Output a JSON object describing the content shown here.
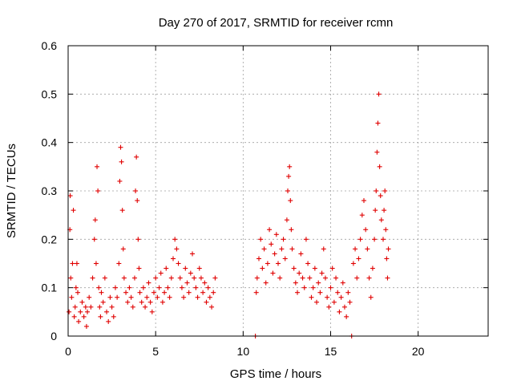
{
  "chart_data": {
    "type": "scatter",
    "title": "Day 270 of 2017, SRMTID for receiver rcmn",
    "xlabel": "GPS time / hours",
    "ylabel": "SRMTID / TECUs",
    "xlim": [
      0,
      24
    ],
    "ylim": [
      0,
      0.6
    ],
    "xticks": [
      0,
      5,
      10,
      15,
      20
    ],
    "yticks": [
      0,
      0.1,
      0.2,
      0.3,
      0.4,
      0.5,
      0.6
    ],
    "x_tick_labels": [
      "0",
      "5",
      "10",
      "15",
      "20"
    ],
    "y_tick_labels": [
      "0",
      "0.1",
      "0.2",
      "0.3",
      "0.4",
      "0.5",
      "0.6"
    ],
    "grid": true,
    "marker": "plus",
    "color": "#e00000",
    "series": [
      {
        "name": "SRMTID",
        "points": [
          [
            0.05,
            0.05
          ],
          [
            0.1,
            0.22
          ],
          [
            0.12,
            0.29
          ],
          [
            0.15,
            0.12
          ],
          [
            0.2,
            0.08
          ],
          [
            0.25,
            0.15
          ],
          [
            0.3,
            0.26
          ],
          [
            0.35,
            0.04
          ],
          [
            0.4,
            0.06
          ],
          [
            0.45,
            0.1
          ],
          [
            0.5,
            0.15
          ],
          [
            0.55,
            0.09
          ],
          [
            0.6,
            0.03
          ],
          [
            0.7,
            0.05
          ],
          [
            0.8,
            0.07
          ],
          [
            0.9,
            0.04
          ],
          [
            1.0,
            0.06
          ],
          [
            1.05,
            0.02
          ],
          [
            1.1,
            0.05
          ],
          [
            1.2,
            0.08
          ],
          [
            1.3,
            0.06
          ],
          [
            1.4,
            0.12
          ],
          [
            1.5,
            0.2
          ],
          [
            1.55,
            0.24
          ],
          [
            1.6,
            0.15
          ],
          [
            1.65,
            0.35
          ],
          [
            1.7,
            0.3
          ],
          [
            1.75,
            0.1
          ],
          [
            1.8,
            0.06
          ],
          [
            1.85,
            0.04
          ],
          [
            1.9,
            0.09
          ],
          [
            2.0,
            0.07
          ],
          [
            2.1,
            0.12
          ],
          [
            2.2,
            0.05
          ],
          [
            2.3,
            0.03
          ],
          [
            2.4,
            0.08
          ],
          [
            2.5,
            0.06
          ],
          [
            2.6,
            0.04
          ],
          [
            2.7,
            0.1
          ],
          [
            2.8,
            0.08
          ],
          [
            2.9,
            0.15
          ],
          [
            2.95,
            0.32
          ],
          [
            3.0,
            0.39
          ],
          [
            3.05,
            0.36
          ],
          [
            3.1,
            0.26
          ],
          [
            3.15,
            0.18
          ],
          [
            3.2,
            0.12
          ],
          [
            3.3,
            0.09
          ],
          [
            3.4,
            0.07
          ],
          [
            3.5,
            0.1
          ],
          [
            3.6,
            0.08
          ],
          [
            3.7,
            0.06
          ],
          [
            3.8,
            0.12
          ],
          [
            3.85,
            0.3
          ],
          [
            3.9,
            0.37
          ],
          [
            3.95,
            0.28
          ],
          [
            4.0,
            0.2
          ],
          [
            4.05,
            0.14
          ],
          [
            4.1,
            0.09
          ],
          [
            4.2,
            0.07
          ],
          [
            4.3,
            0.1
          ],
          [
            4.4,
            0.06
          ],
          [
            4.5,
            0.08
          ],
          [
            4.6,
            0.11
          ],
          [
            4.7,
            0.07
          ],
          [
            4.8,
            0.05
          ],
          [
            4.9,
            0.09
          ],
          [
            5.0,
            0.12
          ],
          [
            5.1,
            0.08
          ],
          [
            5.2,
            0.1
          ],
          [
            5.3,
            0.13
          ],
          [
            5.4,
            0.07
          ],
          [
            5.5,
            0.09
          ],
          [
            5.6,
            0.14
          ],
          [
            5.7,
            0.1
          ],
          [
            5.8,
            0.08
          ],
          [
            5.9,
            0.12
          ],
          [
            6.0,
            0.16
          ],
          [
            6.1,
            0.2
          ],
          [
            6.2,
            0.18
          ],
          [
            6.3,
            0.15
          ],
          [
            6.4,
            0.12
          ],
          [
            6.5,
            0.1
          ],
          [
            6.6,
            0.08
          ],
          [
            6.7,
            0.14
          ],
          [
            6.8,
            0.11
          ],
          [
            6.9,
            0.09
          ],
          [
            7.0,
            0.13
          ],
          [
            7.1,
            0.17
          ],
          [
            7.2,
            0.12
          ],
          [
            7.3,
            0.1
          ],
          [
            7.4,
            0.08
          ],
          [
            7.5,
            0.14
          ],
          [
            7.6,
            0.12
          ],
          [
            7.7,
            0.09
          ],
          [
            7.8,
            0.11
          ],
          [
            7.9,
            0.07
          ],
          [
            8.0,
            0.1
          ],
          [
            8.1,
            0.08
          ],
          [
            8.2,
            0.06
          ],
          [
            8.3,
            0.09
          ],
          [
            8.4,
            0.12
          ],
          [
            10.7,
            0.0
          ],
          [
            10.75,
            0.09
          ],
          [
            10.8,
            0.12
          ],
          [
            10.9,
            0.16
          ],
          [
            11.0,
            0.2
          ],
          [
            11.1,
            0.14
          ],
          [
            11.2,
            0.18
          ],
          [
            11.3,
            0.11
          ],
          [
            11.4,
            0.15
          ],
          [
            11.5,
            0.22
          ],
          [
            11.6,
            0.19
          ],
          [
            11.7,
            0.13
          ],
          [
            11.8,
            0.17
          ],
          [
            11.9,
            0.21
          ],
          [
            12.0,
            0.15
          ],
          [
            12.1,
            0.12
          ],
          [
            12.2,
            0.18
          ],
          [
            12.3,
            0.2
          ],
          [
            12.4,
            0.16
          ],
          [
            12.5,
            0.24
          ],
          [
            12.55,
            0.3
          ],
          [
            12.6,
            0.33
          ],
          [
            12.65,
            0.35
          ],
          [
            12.7,
            0.28
          ],
          [
            12.75,
            0.22
          ],
          [
            12.8,
            0.18
          ],
          [
            12.9,
            0.14
          ],
          [
            13.0,
            0.11
          ],
          [
            13.1,
            0.09
          ],
          [
            13.2,
            0.13
          ],
          [
            13.3,
            0.17
          ],
          [
            13.4,
            0.12
          ],
          [
            13.5,
            0.1
          ],
          [
            13.6,
            0.2
          ],
          [
            13.7,
            0.15
          ],
          [
            13.8,
            0.12
          ],
          [
            13.9,
            0.08
          ],
          [
            14.0,
            0.1
          ],
          [
            14.1,
            0.14
          ],
          [
            14.2,
            0.07
          ],
          [
            14.3,
            0.11
          ],
          [
            14.4,
            0.09
          ],
          [
            14.5,
            0.13
          ],
          [
            14.6,
            0.18
          ],
          [
            14.7,
            0.12
          ],
          [
            14.8,
            0.08
          ],
          [
            14.9,
            0.06
          ],
          [
            15.0,
            0.1
          ],
          [
            15.1,
            0.14
          ],
          [
            15.2,
            0.07
          ],
          [
            15.3,
            0.12
          ],
          [
            15.4,
            0.09
          ],
          [
            15.5,
            0.05
          ],
          [
            15.6,
            0.08
          ],
          [
            15.7,
            0.11
          ],
          [
            15.8,
            0.06
          ],
          [
            15.9,
            0.04
          ],
          [
            16.0,
            0.09
          ],
          [
            16.1,
            0.07
          ],
          [
            16.2,
            0.0
          ],
          [
            16.3,
            0.15
          ],
          [
            16.4,
            0.18
          ],
          [
            16.5,
            0.12
          ],
          [
            16.6,
            0.16
          ],
          [
            16.7,
            0.2
          ],
          [
            16.8,
            0.25
          ],
          [
            16.9,
            0.28
          ],
          [
            17.0,
            0.22
          ],
          [
            17.1,
            0.18
          ],
          [
            17.2,
            0.12
          ],
          [
            17.3,
            0.08
          ],
          [
            17.4,
            0.14
          ],
          [
            17.5,
            0.2
          ],
          [
            17.55,
            0.26
          ],
          [
            17.6,
            0.3
          ],
          [
            17.65,
            0.38
          ],
          [
            17.7,
            0.44
          ],
          [
            17.75,
            0.5
          ],
          [
            17.8,
            0.35
          ],
          [
            17.85,
            0.29
          ],
          [
            17.9,
            0.24
          ],
          [
            18.0,
            0.2
          ],
          [
            18.05,
            0.26
          ],
          [
            18.1,
            0.3
          ],
          [
            18.15,
            0.22
          ],
          [
            18.2,
            0.16
          ],
          [
            18.25,
            0.12
          ],
          [
            18.3,
            0.18
          ]
        ]
      }
    ]
  }
}
